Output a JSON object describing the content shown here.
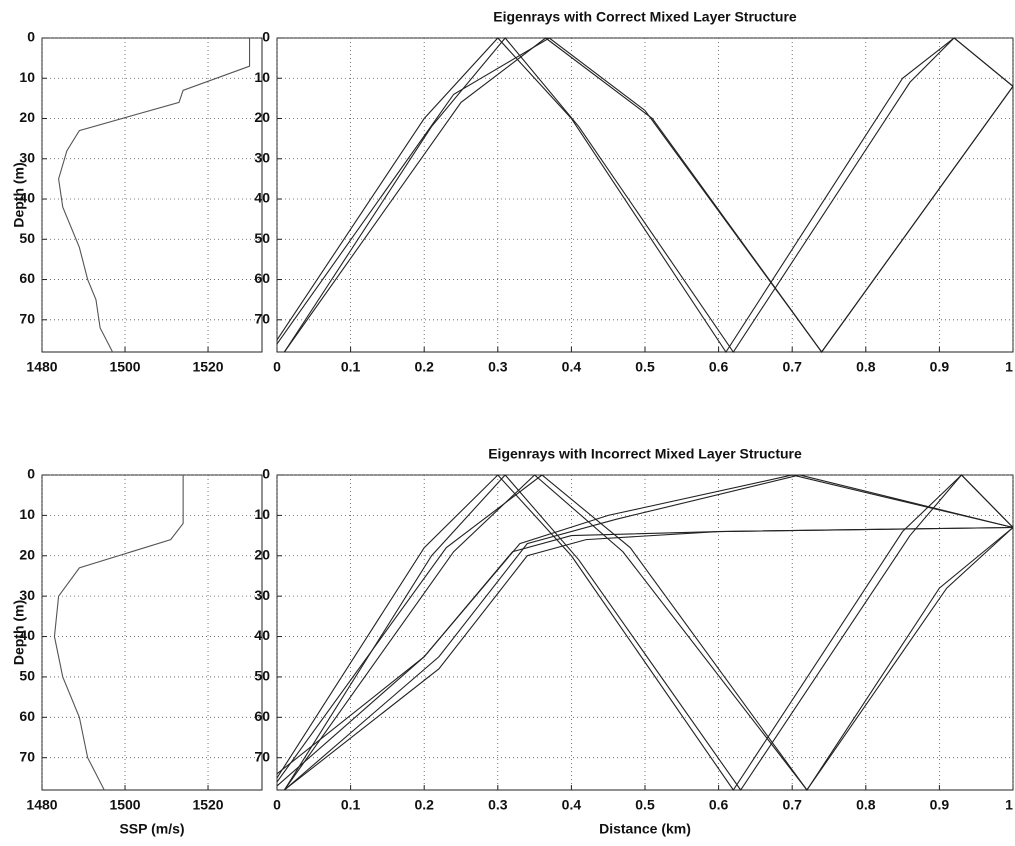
{
  "chart_data": [
    {
      "type": "line",
      "ylabel": "Depth (m)",
      "xlim": [
        1480,
        1533
      ],
      "ylim": [
        0,
        78
      ],
      "y_inverted": true,
      "grid": true,
      "xticks": [
        1480,
        1500,
        1520
      ],
      "yticks": [
        0,
        10,
        20,
        30,
        40,
        50,
        60,
        70
      ],
      "series": [
        {
          "color": "#555555",
          "x": [
            1530,
            1530,
            1514,
            1513,
            1489,
            1486,
            1484,
            1485,
            1489,
            1491,
            1493,
            1494,
            1497
          ],
          "y": [
            0,
            7,
            13,
            16,
            23,
            28,
            35,
            42,
            52,
            60,
            65,
            72,
            78
          ]
        }
      ]
    },
    {
      "type": "line",
      "title": "Eigenrays with Correct Mixed Layer Structure",
      "xlim": [
        0,
        1
      ],
      "ylim": [
        0,
        78
      ],
      "y_inverted": true,
      "grid": true,
      "xticks": [
        0,
        0.1,
        0.2,
        0.3,
        0.4,
        0.5,
        0.6,
        0.7,
        0.8,
        0.9,
        1
      ],
      "yticks": [
        0,
        10,
        20,
        30,
        40,
        50,
        60,
        70
      ],
      "series": [
        {
          "color": "#222222",
          "x": [
            0,
            0.2,
            0.3,
            0.4,
            0.61,
            0.85,
            0.92,
            1
          ],
          "y": [
            75,
            20,
            0,
            20,
            78,
            10,
            0,
            12
          ]
        },
        {
          "color": "#222222",
          "x": [
            0.01,
            0.21,
            0.31,
            0.41,
            0.62,
            0.86,
            0.92,
            1
          ],
          "y": [
            78,
            22,
            0,
            22,
            78,
            11,
            0,
            12
          ]
        },
        {
          "color": "#222222",
          "x": [
            0,
            0.24,
            0.37,
            0.5,
            0.74,
            1
          ],
          "y": [
            76,
            14,
            0,
            18,
            78,
            12
          ]
        },
        {
          "color": "#222222",
          "x": [
            0.01,
            0.25,
            0.365,
            0.51,
            0.74,
            1
          ],
          "y": [
            78,
            16,
            0,
            20,
            78,
            12
          ]
        }
      ]
    },
    {
      "type": "line",
      "ylabel": "Depth (m)",
      "xlabel": "SSP (m/s)",
      "xlim": [
        1480,
        1533
      ],
      "ylim": [
        0,
        78
      ],
      "y_inverted": true,
      "grid": true,
      "xticks": [
        1480,
        1500,
        1520
      ],
      "yticks": [
        0,
        10,
        20,
        30,
        40,
        50,
        60,
        70
      ],
      "series": [
        {
          "color": "#555555",
          "x": [
            1514,
            1514,
            1511,
            1489,
            1484,
            1483,
            1485,
            1489,
            1491,
            1495
          ],
          "y": [
            0,
            12,
            16,
            23,
            30,
            40,
            50,
            60,
            70,
            78
          ]
        }
      ]
    },
    {
      "type": "line",
      "title": "Eigenrays with Incorrect Mixed Layer Structure",
      "xlabel": "Distance (km)",
      "xlim": [
        0,
        1
      ],
      "ylim": [
        0,
        78
      ],
      "y_inverted": true,
      "grid": true,
      "xticks": [
        0,
        0.1,
        0.2,
        0.3,
        0.4,
        0.5,
        0.6,
        0.7,
        0.8,
        0.9,
        1
      ],
      "yticks": [
        0,
        10,
        20,
        30,
        40,
        50,
        60,
        70
      ],
      "series": [
        {
          "color": "#222222",
          "x": [
            0,
            0.2,
            0.3,
            0.4,
            0.62,
            0.85,
            0.93,
            1
          ],
          "y": [
            75,
            18,
            0,
            20,
            78,
            14,
            0,
            13
          ]
        },
        {
          "color": "#222222",
          "x": [
            0.01,
            0.21,
            0.31,
            0.41,
            0.63,
            0.86,
            0.93,
            1
          ],
          "y": [
            78,
            20,
            0,
            21,
            78,
            15,
            0,
            13
          ]
        },
        {
          "color": "#222222",
          "x": [
            0,
            0.23,
            0.36,
            0.48,
            0.72,
            0.9,
            1
          ],
          "y": [
            76,
            18,
            0,
            18,
            78,
            28,
            13
          ]
        },
        {
          "color": "#222222",
          "x": [
            0.01,
            0.24,
            0.35,
            0.47,
            0.72,
            0.91,
            1
          ],
          "y": [
            78,
            19,
            0,
            19,
            78,
            28,
            13
          ]
        },
        {
          "color": "#222222",
          "x": [
            0,
            0.2,
            0.33,
            0.45,
            0.7,
            1
          ],
          "y": [
            77,
            45,
            17,
            10,
            0,
            13
          ]
        },
        {
          "color": "#222222",
          "x": [
            0.01,
            0.22,
            0.34,
            0.46,
            0.71,
            1
          ],
          "y": [
            78,
            45,
            17,
            11,
            0,
            13
          ]
        },
        {
          "color": "#222222",
          "x": [
            0,
            0.2,
            0.32,
            0.4,
            0.6,
            1
          ],
          "y": [
            74,
            45,
            19,
            15,
            14,
            13
          ]
        },
        {
          "color": "#222222",
          "x": [
            0.01,
            0.22,
            0.34,
            0.42,
            0.6,
            1
          ],
          "y": [
            78,
            48,
            20,
            16,
            14,
            13
          ]
        }
      ]
    }
  ]
}
